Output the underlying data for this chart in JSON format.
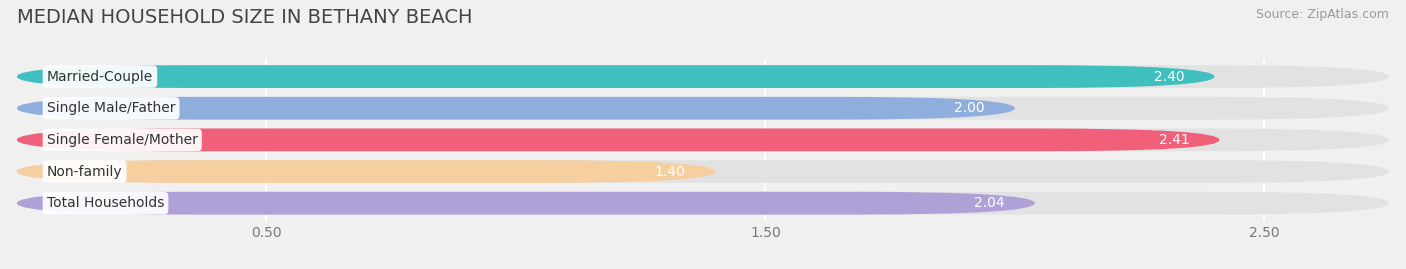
{
  "title": "MEDIAN HOUSEHOLD SIZE IN BETHANY BEACH",
  "source": "Source: ZipAtlas.com",
  "categories": [
    "Married-Couple",
    "Single Male/Father",
    "Single Female/Mother",
    "Non-family",
    "Total Households"
  ],
  "values": [
    2.4,
    2.0,
    2.41,
    1.4,
    2.04
  ],
  "bar_colors": [
    "#40bfbf",
    "#90aedd",
    "#f0607a",
    "#f5cfa0",
    "#b0a0d8"
  ],
  "xlim_data": [
    0,
    2.75
  ],
  "xticks": [
    0.5,
    1.5,
    2.5
  ],
  "background_color": "#f0f0f0",
  "bar_bg_color": "#e2e2e2",
  "title_fontsize": 14,
  "label_fontsize": 10,
  "value_fontsize": 10,
  "source_fontsize": 9,
  "bar_height": 0.72,
  "bar_gap": 0.18
}
